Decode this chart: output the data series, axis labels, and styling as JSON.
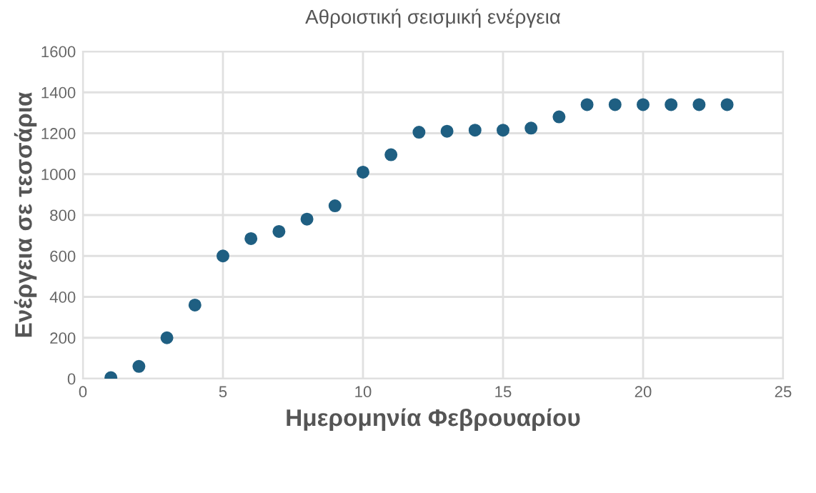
{
  "chart_data": {
    "type": "scatter",
    "title": "Αθροιστική σεισμική ενέργεια",
    "xlabel": "Ημερομηνία Φεβρουαρίου",
    "ylabel": "Ενέργεια σε τεσσάρια",
    "x": [
      1,
      2,
      3,
      4,
      5,
      6,
      7,
      8,
      9,
      10,
      11,
      12,
      13,
      14,
      15,
      16,
      17,
      18,
      19,
      20,
      21,
      22,
      23
    ],
    "series": [
      {
        "color": "#1f5f82",
        "values": [
          5,
          60,
          200,
          360,
          600,
          685,
          720,
          780,
          845,
          1010,
          1095,
          1205,
          1210,
          1215,
          1215,
          1225,
          1280,
          1340,
          1340,
          1340,
          1340,
          1340,
          1340
        ]
      }
    ],
    "xlim": [
      0,
      25
    ],
    "xticks": [
      0,
      5,
      10,
      15,
      20,
      25
    ],
    "ylim": [
      0,
      1600
    ],
    "yticks": [
      0,
      200,
      400,
      600,
      800,
      1000,
      1200,
      1400,
      1600
    ],
    "grid": true,
    "marker": "circle",
    "legend": false
  }
}
